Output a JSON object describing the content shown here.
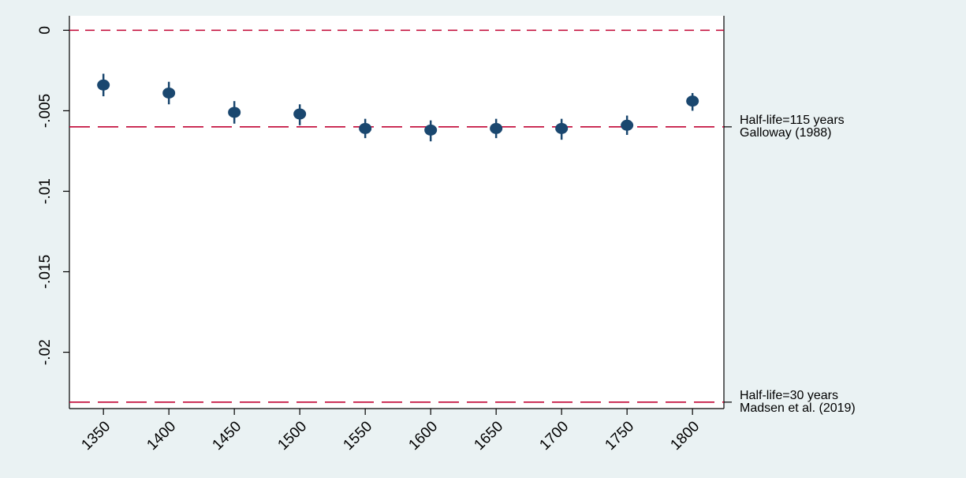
{
  "chart_data": {
    "type": "scatter",
    "x": [
      1350,
      1400,
      1450,
      1500,
      1550,
      1600,
      1650,
      1700,
      1750,
      1800
    ],
    "series": [
      {
        "color": "#1a476f",
        "values": [
          -0.0034,
          -0.0039,
          -0.0051,
          -0.0052,
          -0.0061,
          -0.0062,
          -0.0061,
          -0.0061,
          -0.0059,
          -0.0044
        ],
        "lower": [
          -0.0041,
          -0.0046,
          -0.0058,
          -0.0059,
          -0.0067,
          -0.0069,
          -0.0067,
          -0.0068,
          -0.0065,
          -0.005
        ],
        "upper": [
          -0.0027,
          -0.0032,
          -0.0044,
          -0.0046,
          -0.0055,
          -0.0056,
          -0.0055,
          -0.0055,
          -0.0053,
          -0.0039
        ]
      }
    ],
    "xlim": [
      1324,
      1824
    ],
    "xticks": [
      1350,
      1400,
      1450,
      1500,
      1550,
      1600,
      1650,
      1700,
      1750,
      1800
    ],
    "ylim": [
      -0.0235,
      0.0009
    ],
    "yticks": [
      0,
      {
        "value": -0.005,
        "label": "-.005"
      },
      {
        "value": -0.01,
        "label": "-.01"
      },
      {
        "value": -0.015,
        "label": "-.015"
      },
      {
        "value": -0.02,
        "label": "-.02"
      }
    ],
    "reference_lines": [
      {
        "value": 0,
        "color": "#c10534"
      },
      {
        "value": -0.006,
        "color": "#c10534",
        "label_line1": "Half-life=115 years",
        "label_line2": "Galloway (1988)"
      },
      {
        "value": -0.0231,
        "color": "#c10534",
        "label_line1": "Half-life=30 years",
        "label_line2": "Madsen et al. (2019)"
      }
    ]
  }
}
